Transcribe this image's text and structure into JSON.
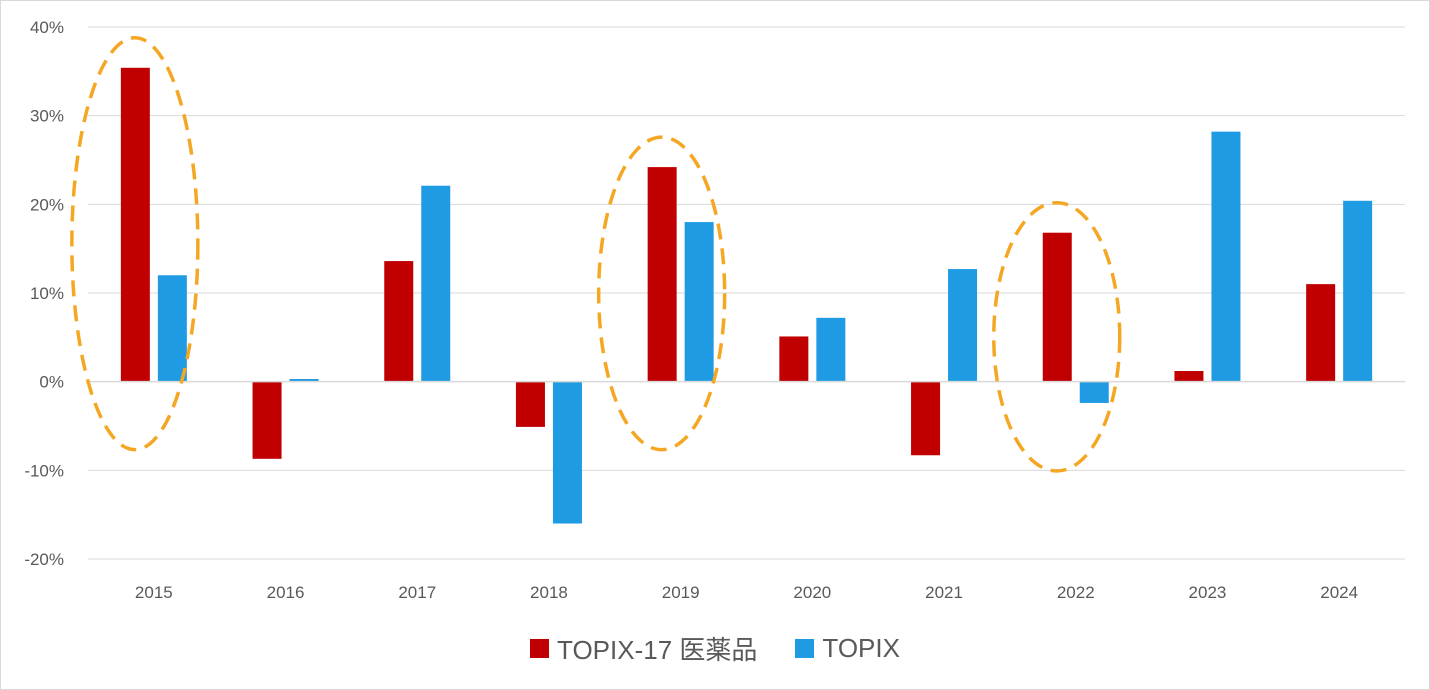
{
  "chart_data": {
    "type": "bar",
    "categories": [
      "2015",
      "2016",
      "2017",
      "2018",
      "2019",
      "2020",
      "2021",
      "2022",
      "2023",
      "2024"
    ],
    "series": [
      {
        "name": "TOPIX-17 医薬品",
        "color": "#c00000",
        "values": [
          35.4,
          -8.7,
          13.6,
          -5.1,
          24.2,
          5.1,
          -8.3,
          16.8,
          1.2,
          11.0
        ]
      },
      {
        "name": "TOPIX",
        "color": "#1f9be3",
        "values": [
          12.0,
          0.3,
          22.1,
          -16.0,
          18.0,
          7.2,
          12.7,
          -2.4,
          28.2,
          20.4
        ]
      }
    ],
    "ylim": [
      -20,
      40
    ],
    "yticks": [
      40,
      30,
      20,
      10,
      0,
      -10,
      -20
    ],
    "ytick_labels": [
      "40%",
      "30%",
      "20%",
      "10%",
      "0%",
      "-10%",
      "-20%"
    ],
    "y_unit": "%",
    "grid": true,
    "legend": "bottom",
    "highlighted_categories": [
      "2015",
      "2019",
      "2022"
    ],
    "highlight_color": "#f5a623"
  }
}
